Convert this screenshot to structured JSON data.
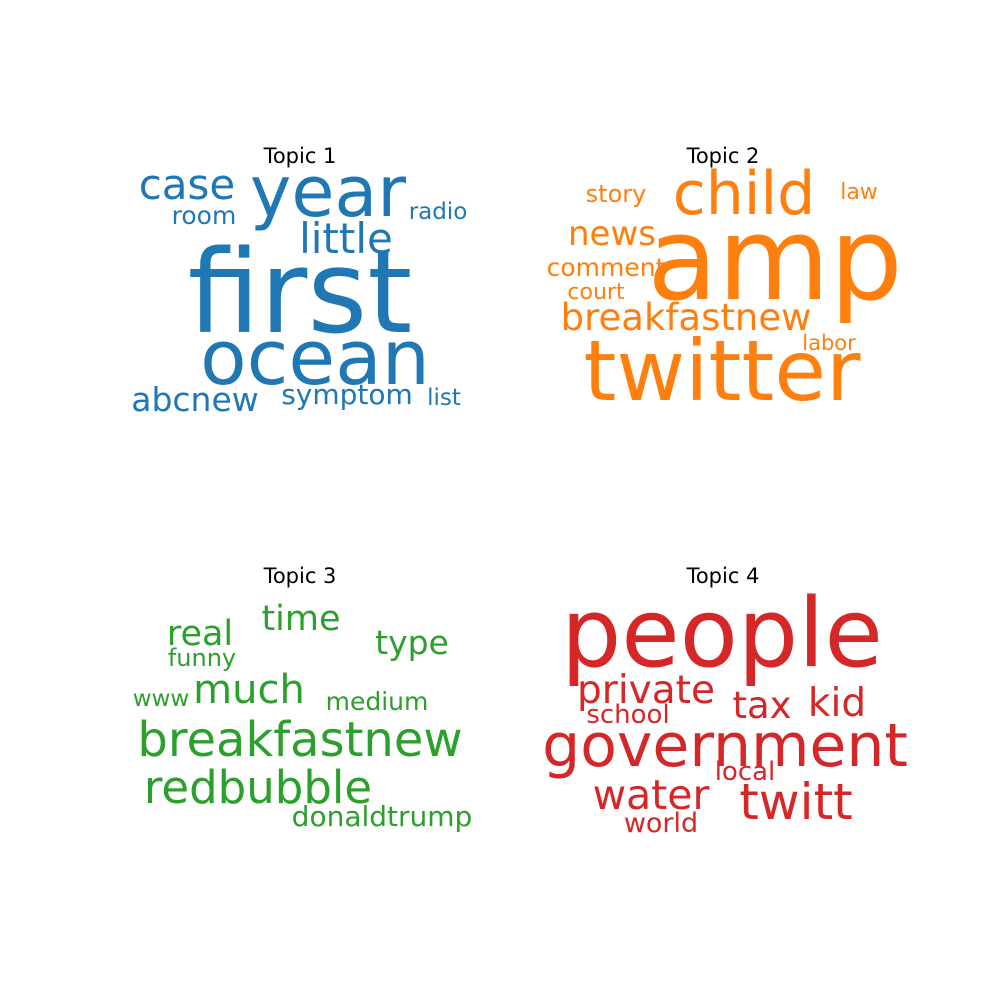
{
  "chart_data": [
    {
      "type": "wordcloud",
      "title": "Topic 1",
      "color": "#1f77b4",
      "words": [
        {
          "text": "first",
          "weight": 1.0
        },
        {
          "text": "year",
          "weight": 0.75
        },
        {
          "text": "ocean",
          "weight": 0.72
        },
        {
          "text": "case",
          "weight": 0.4
        },
        {
          "text": "little",
          "weight": 0.4
        },
        {
          "text": "abcnew",
          "weight": 0.32
        },
        {
          "text": "symptom",
          "weight": 0.27
        },
        {
          "text": "room",
          "weight": 0.25
        },
        {
          "text": "radio",
          "weight": 0.23
        },
        {
          "text": "list",
          "weight": 0.22
        }
      ]
    },
    {
      "type": "wordcloud",
      "title": "Topic 2",
      "color": "#ff7f0e",
      "words": [
        {
          "text": "amp",
          "weight": 1.0
        },
        {
          "text": "twitter",
          "weight": 0.72
        },
        {
          "text": "child",
          "weight": 0.53
        },
        {
          "text": "breakfastnew",
          "weight": 0.35
        },
        {
          "text": "news",
          "weight": 0.32
        },
        {
          "text": "comment",
          "weight": 0.25
        },
        {
          "text": "story",
          "weight": 0.23
        },
        {
          "text": "court",
          "weight": 0.22
        },
        {
          "text": "law",
          "weight": 0.2
        },
        {
          "text": "labor",
          "weight": 0.2
        }
      ]
    },
    {
      "type": "wordcloud",
      "title": "Topic 3",
      "color": "#2ca02c",
      "words": [
        {
          "text": "breakfastnew",
          "weight": 1.0
        },
        {
          "text": "redbubble",
          "weight": 0.96
        },
        {
          "text": "much",
          "weight": 0.87
        },
        {
          "text": "real",
          "weight": 0.75
        },
        {
          "text": "time",
          "weight": 0.75
        },
        {
          "text": "type",
          "weight": 0.7
        },
        {
          "text": "donaldtrump",
          "weight": 0.62
        },
        {
          "text": "medium",
          "weight": 0.56
        },
        {
          "text": "funny",
          "weight": 0.54
        },
        {
          "text": "www",
          "weight": 0.52
        }
      ]
    },
    {
      "type": "wordcloud",
      "title": "Topic 4",
      "color": "#d62728",
      "words": [
        {
          "text": "people",
          "weight": 1.0
        },
        {
          "text": "government",
          "weight": 0.62
        },
        {
          "text": "twitt",
          "weight": 0.52
        },
        {
          "text": "water",
          "weight": 0.42
        },
        {
          "text": "private",
          "weight": 0.4
        },
        {
          "text": "kid",
          "weight": 0.4
        },
        {
          "text": "tax",
          "weight": 0.38
        },
        {
          "text": "world",
          "weight": 0.28
        },
        {
          "text": "school",
          "weight": 0.27
        },
        {
          "text": "local",
          "weight": 0.27
        }
      ]
    }
  ]
}
